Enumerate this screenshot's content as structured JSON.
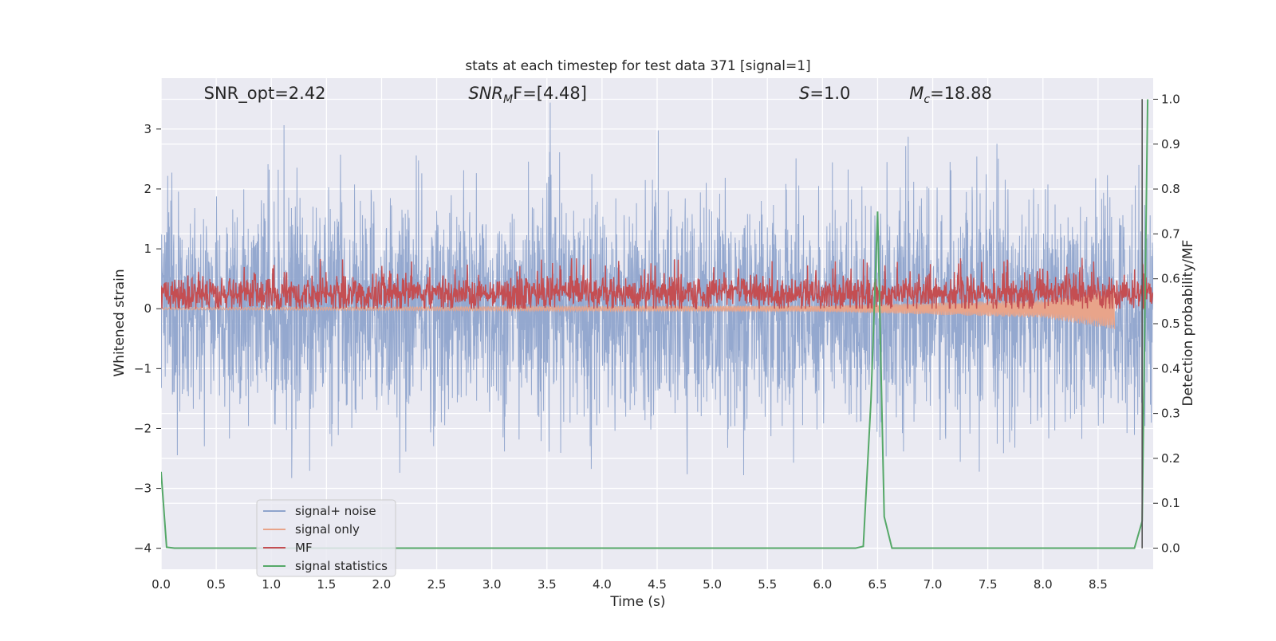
{
  "chart_data": {
    "type": "line",
    "title": "stats at each timestep for test data 371 [signal=1]",
    "xlabel": "Time (s)",
    "ylabel": "Whitened strain",
    "y2label": "Detection probability/MF",
    "xlim": [
      0.0,
      9.0
    ],
    "ylim": [
      -4.35,
      3.85
    ],
    "y2lim": [
      -0.047,
      1.047
    ],
    "x_ticks": [
      "0.0",
      "0.5",
      "1.0",
      "1.5",
      "2.0",
      "2.5",
      "3.0",
      "3.5",
      "4.0",
      "4.5",
      "5.0",
      "5.5",
      "6.0",
      "6.5",
      "7.0",
      "7.5",
      "8.0",
      "8.5"
    ],
    "x_tick_values": [
      0.0,
      0.5,
      1.0,
      1.5,
      2.0,
      2.5,
      3.0,
      3.5,
      4.0,
      4.5,
      5.0,
      5.5,
      6.0,
      6.5,
      7.0,
      7.5,
      8.0,
      8.5
    ],
    "y_ticks": [
      "3",
      "2",
      "1",
      "0",
      "−1",
      "−2",
      "−3",
      "−4"
    ],
    "y_tick_values": [
      3,
      2,
      1,
      0,
      -1,
      -2,
      -3,
      -4
    ],
    "y2_ticks": [
      "1.0",
      "0.9",
      "0.8",
      "0.7",
      "0.6",
      "0.5",
      "0.4",
      "0.3",
      "0.2",
      "0.1",
      "0.0"
    ],
    "y2_tick_values": [
      1.0,
      0.9,
      0.8,
      0.7,
      0.6,
      0.5,
      0.4,
      0.3,
      0.2,
      0.1,
      0.0
    ],
    "grid": true,
    "legend_position": "bottom-left",
    "annotations": [
      {
        "prefix": "SNR_opt",
        "sub": "",
        "suffix": "=2.42",
        "italic": false,
        "x": 0.2
      },
      {
        "prefix": "SNR",
        "sub": "M",
        "suffix": "F=[4.48]",
        "italic": true,
        "x": 2.6
      },
      {
        "prefix": "S",
        "sub": "",
        "suffix": "=1.0",
        "italic": true,
        "x": 5.6
      },
      {
        "prefix": "M",
        "sub": "c",
        "suffix": "=18.88",
        "italic": true,
        "x": 6.6
      }
    ],
    "series": [
      {
        "name": "signal+ noise",
        "color": "#8fa4cc",
        "axis": "left",
        "kind": "noise",
        "amplitude_std": 0.9,
        "envelope": [
          -3.0,
          3.3
        ]
      },
      {
        "name": "signal only",
        "color": "#e8a48a",
        "axis": "left",
        "kind": "chirp",
        "x": [
          0.0,
          6.0,
          8.0,
          8.65
        ],
        "amplitude": [
          0.02,
          0.05,
          0.15,
          0.35
        ]
      },
      {
        "name": "MF",
        "color": "#c44e52",
        "axis": "left",
        "kind": "mf",
        "baseline": 0.25,
        "peaks": 0.85,
        "range": [
          0.0,
          9.0
        ]
      },
      {
        "name": "signal statistics",
        "color": "#55a868",
        "axis": "right",
        "x": [
          0.0,
          0.05,
          0.12,
          6.3,
          6.37,
          6.44,
          6.5,
          6.56,
          6.63,
          8.83,
          8.9,
          8.95
        ],
        "y": [
          0.17,
          0.002,
          0.0,
          0.0,
          0.004,
          0.33,
          0.75,
          0.07,
          0.0,
          0.0,
          0.06,
          1.0
        ]
      }
    ],
    "vline": {
      "x": 8.9,
      "y_top": 3.5,
      "y_bottom": -4.0,
      "color": "#555555"
    }
  }
}
